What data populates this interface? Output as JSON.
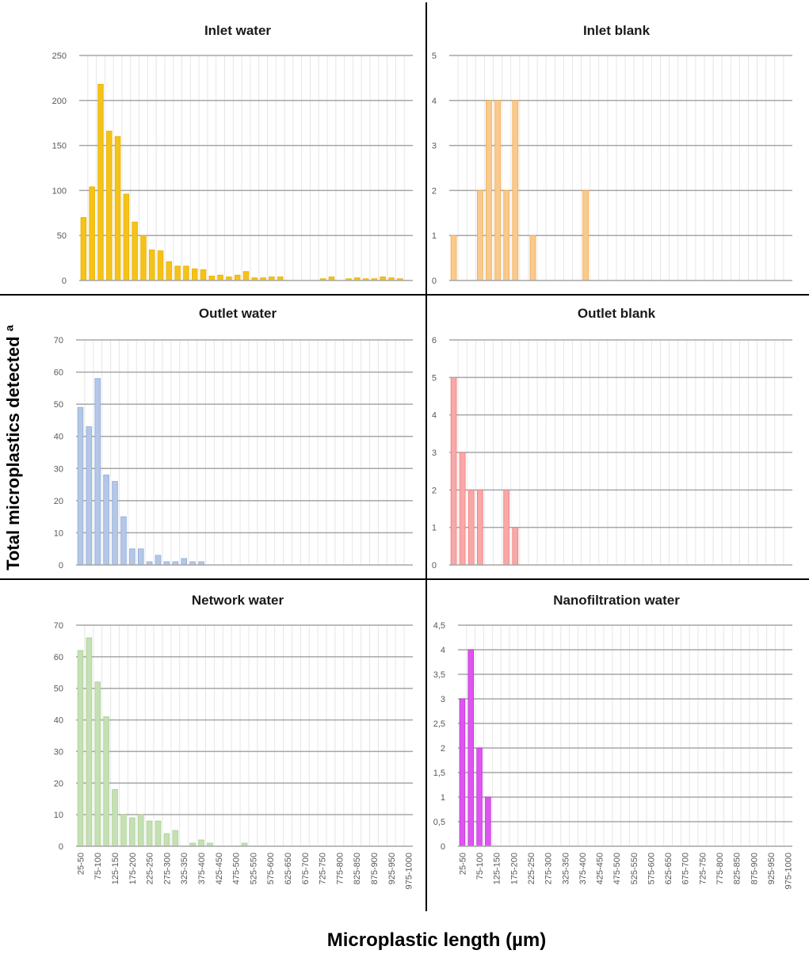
{
  "y_axis_label": "Total microplastics detected ª",
  "x_axis_label": "Microplastic length (µm)",
  "chart_data": [
    {
      "type": "bar",
      "title": "Inlet water",
      "color": "#f5c218",
      "edge_color": "#e8b100",
      "ylim": [
        0,
        250
      ],
      "yticks": [
        "0",
        "50",
        "100",
        "150",
        "200",
        "250"
      ],
      "xlabel": "",
      "ylabel": "",
      "categories": [
        "25-50",
        "50-75",
        "75-100",
        "100-125",
        "125-150",
        "150-175",
        "175-200",
        "200-225",
        "225-250",
        "250-275",
        "275-300",
        "300-325",
        "325-350",
        "350-375",
        "375-400",
        "400-425",
        "425-450",
        "450-475",
        "475-500",
        "500-525",
        "525-550",
        "550-575",
        "575-600",
        "600-625",
        "625-650",
        "650-675",
        "675-700",
        "700-725",
        "725-750",
        "750-775",
        "775-800",
        "800-825",
        "825-850",
        "850-875",
        "875-900",
        "900-925",
        "925-950",
        "950-975",
        "975-1000"
      ],
      "values": [
        70,
        104,
        218,
        166,
        160,
        96,
        65,
        50,
        34,
        33,
        21,
        16,
        16,
        13,
        12,
        5,
        6,
        4,
        6,
        10,
        3,
        3,
        4,
        4,
        0,
        0,
        0,
        0,
        2,
        4,
        0,
        2,
        3,
        2,
        2,
        4,
        3,
        2,
        0
      ]
    },
    {
      "type": "bar",
      "title": "Inlet blank",
      "color": "#f9ca8d",
      "edge_color": "#f0a84a",
      "ylim": [
        0,
        5
      ],
      "yticks": [
        "0",
        "1",
        "2",
        "3",
        "4",
        "5"
      ],
      "xlabel": "",
      "ylabel": "",
      "categories": [
        "25-50",
        "50-75",
        "75-100",
        "100-125",
        "125-150",
        "150-175",
        "175-200",
        "200-225",
        "225-250",
        "250-275",
        "275-300",
        "300-325",
        "325-350",
        "350-375",
        "375-400",
        "400-425",
        "425-450",
        "450-475",
        "475-500",
        "500-525",
        "525-550",
        "550-575",
        "575-600",
        "600-625",
        "625-650",
        "650-675",
        "675-700",
        "700-725",
        "725-750",
        "750-775",
        "775-800",
        "800-825",
        "825-850",
        "850-875",
        "875-900",
        "900-925",
        "925-950",
        "950-975",
        "975-1000"
      ],
      "values": [
        1,
        0,
        0,
        2,
        4,
        4,
        2,
        4,
        0,
        1,
        0,
        0,
        0,
        0,
        0,
        2,
        0,
        0,
        0,
        0,
        0,
        0,
        0,
        0,
        0,
        0,
        0,
        0,
        0,
        0,
        0,
        0,
        0,
        0,
        0,
        0,
        0,
        0,
        0
      ]
    },
    {
      "type": "bar",
      "title": "Outlet water",
      "color": "#b4c7e7",
      "edge_color": "#8eaadb",
      "ylim": [
        0,
        70
      ],
      "yticks": [
        "0",
        "10",
        "20",
        "30",
        "40",
        "50",
        "60",
        "70"
      ],
      "xlabel": "",
      "ylabel": "",
      "categories": [
        "25-50",
        "50-75",
        "75-100",
        "100-125",
        "125-150",
        "150-175",
        "175-200",
        "200-225",
        "225-250",
        "250-275",
        "275-300",
        "300-325",
        "325-350",
        "350-375",
        "375-400",
        "400-425",
        "425-450",
        "450-475",
        "475-500",
        "500-525",
        "525-550",
        "550-575",
        "575-600",
        "600-625",
        "625-650",
        "650-675",
        "675-700",
        "700-725",
        "725-750",
        "750-775",
        "775-800",
        "800-825",
        "825-850",
        "850-875",
        "875-900",
        "900-925",
        "925-950",
        "950-975",
        "975-1000"
      ],
      "values": [
        49,
        43,
        58,
        28,
        26,
        15,
        5,
        5,
        1,
        3,
        1,
        1,
        2,
        1,
        1,
        0,
        0,
        0,
        0,
        0,
        0,
        0,
        0,
        0,
        0,
        0,
        0,
        0,
        0,
        0,
        0,
        0,
        0,
        0,
        0,
        0,
        0,
        0,
        0
      ]
    },
    {
      "type": "bar",
      "title": "Outlet blank",
      "color": "#f8a8a8",
      "edge_color": "#f07a7a",
      "ylim": [
        0,
        6
      ],
      "yticks": [
        "0",
        "1",
        "2",
        "3",
        "4",
        "5",
        "6"
      ],
      "xlabel": "",
      "ylabel": "",
      "categories": [
        "25-50",
        "50-75",
        "75-100",
        "100-125",
        "125-150",
        "150-175",
        "175-200",
        "200-225",
        "225-250",
        "250-275",
        "275-300",
        "300-325",
        "325-350",
        "350-375",
        "375-400",
        "400-425",
        "425-450",
        "450-475",
        "475-500",
        "500-525",
        "525-550",
        "550-575",
        "575-600",
        "600-625",
        "625-650",
        "650-675",
        "675-700",
        "700-725",
        "725-750",
        "750-775",
        "775-800",
        "800-825",
        "825-850",
        "850-875",
        "875-900",
        "900-925",
        "925-950",
        "950-975",
        "975-1000"
      ],
      "values": [
        5,
        3,
        2,
        2,
        0,
        0,
        2,
        1,
        0,
        0,
        0,
        0,
        0,
        0,
        0,
        0,
        0,
        0,
        0,
        0,
        0,
        0,
        0,
        0,
        0,
        0,
        0,
        0,
        0,
        0,
        0,
        0,
        0,
        0,
        0,
        0,
        0,
        0,
        0
      ]
    },
    {
      "type": "bar",
      "title": "Network water",
      "color": "#c5e0b4",
      "edge_color": "#a9d18e",
      "ylim": [
        0,
        70
      ],
      "yticks": [
        "0",
        "10",
        "20",
        "30",
        "40",
        "50",
        "60",
        "70"
      ],
      "xlabel": "",
      "ylabel": "",
      "categories": [
        "25-50",
        "50-75",
        "75-100",
        "100-125",
        "125-150",
        "150-175",
        "175-200",
        "200-225",
        "225-250",
        "250-275",
        "275-300",
        "300-325",
        "325-350",
        "350-375",
        "375-400",
        "400-425",
        "425-450",
        "450-475",
        "475-500",
        "500-525",
        "525-550",
        "550-575",
        "575-600",
        "600-625",
        "625-650",
        "650-675",
        "675-700",
        "700-725",
        "725-750",
        "750-775",
        "775-800",
        "800-825",
        "825-850",
        "850-875",
        "875-900",
        "900-925",
        "925-950",
        "950-975",
        "975-1000"
      ],
      "values": [
        62,
        66,
        52,
        41,
        18,
        10,
        9,
        10,
        8,
        8,
        4,
        5,
        0,
        1,
        2,
        1,
        0,
        0,
        0,
        1,
        0,
        0,
        0,
        0,
        0,
        0,
        0,
        0,
        0,
        0,
        0,
        0,
        0,
        0,
        0,
        0,
        0,
        0,
        0
      ],
      "tick_labels": [
        "25-50",
        "75-100",
        "125-150",
        "175-200",
        "225-250",
        "275-300",
        "325-350",
        "375-400",
        "425-450",
        "475-500",
        "525-550",
        "575-600",
        "625-650",
        "675-700",
        "725-750",
        "775-800",
        "825-850",
        "875-900",
        "925-950",
        "975-1000"
      ]
    },
    {
      "type": "bar",
      "title": "Nanofiltration water",
      "color": "#dd55f0",
      "edge_color": "#c12ed8",
      "ylim": [
        0,
        4.5
      ],
      "yticks": [
        "0",
        "0,5",
        "1",
        "1,5",
        "2",
        "2,5",
        "3",
        "3,5",
        "4",
        "4,5"
      ],
      "xlabel": "",
      "ylabel": "",
      "categories": [
        "25-50",
        "50-75",
        "75-100",
        "100-125",
        "125-150",
        "150-175",
        "175-200",
        "200-225",
        "225-250",
        "250-275",
        "275-300",
        "300-325",
        "325-350",
        "350-375",
        "375-400",
        "400-425",
        "425-450",
        "450-475",
        "475-500",
        "500-525",
        "525-550",
        "550-575",
        "575-600",
        "600-625",
        "625-650",
        "650-675",
        "675-700",
        "700-725",
        "725-750",
        "750-775",
        "775-800",
        "800-825",
        "825-850",
        "850-875",
        "875-900",
        "900-925",
        "925-950",
        "950-975",
        "975-1000"
      ],
      "values": [
        3,
        4,
        2,
        1,
        0,
        0,
        0,
        0,
        0,
        0,
        0,
        0,
        0,
        0,
        0,
        0,
        0,
        0,
        0,
        0,
        0,
        0,
        0,
        0,
        0,
        0,
        0,
        0,
        0,
        0,
        0,
        0,
        0,
        0,
        0,
        0,
        0,
        0,
        0
      ],
      "tick_labels": [
        "25-50",
        "75-100",
        "125-150",
        "175-200",
        "225-250",
        "275-300",
        "325-350",
        "375-400",
        "425-450",
        "475-500",
        "525-550",
        "575-600",
        "625-650",
        "675-700",
        "725-750",
        "775-800",
        "825-850",
        "875-900",
        "925-950",
        "975-1000"
      ]
    }
  ]
}
